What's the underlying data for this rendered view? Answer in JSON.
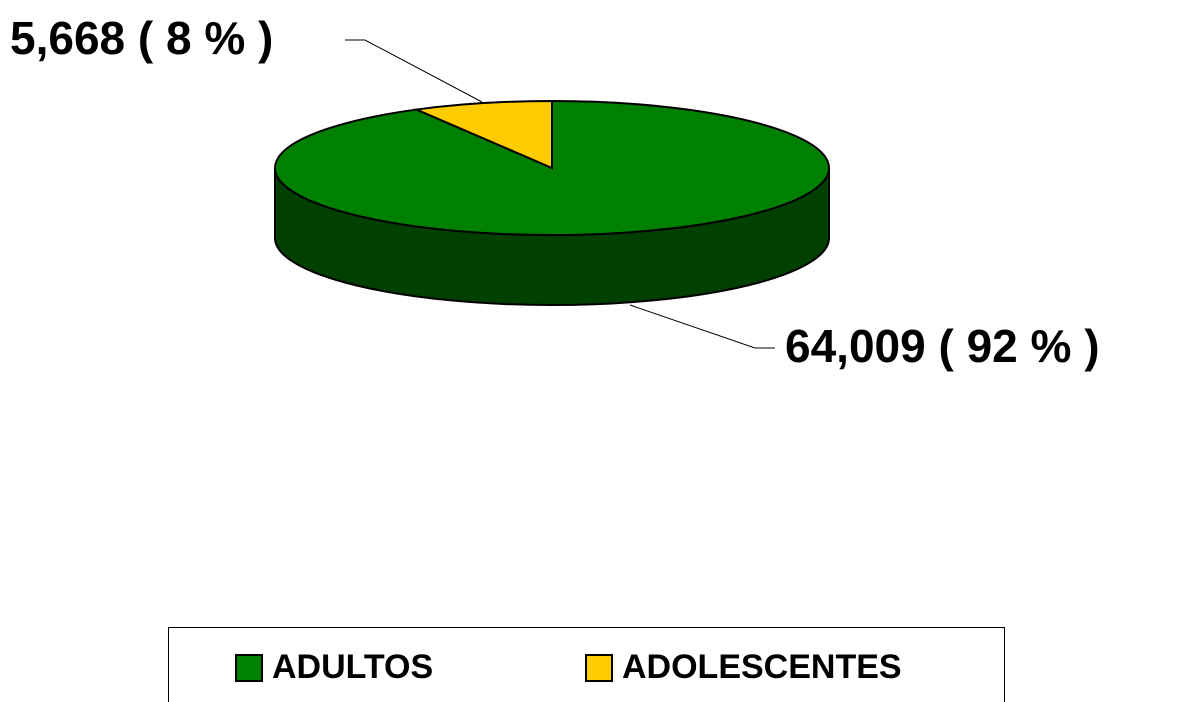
{
  "chart_data": {
    "type": "pie3d",
    "categories": [
      "ADULTOS",
      "ADOLESCENTES"
    ],
    "values": [
      64009,
      5668
    ],
    "value_labels": [
      "64,009 ( 92 % )",
      "5,668 ( 8 % )"
    ],
    "colors": [
      "#008000",
      "#FFCC00"
    ],
    "legend": "bottom"
  }
}
